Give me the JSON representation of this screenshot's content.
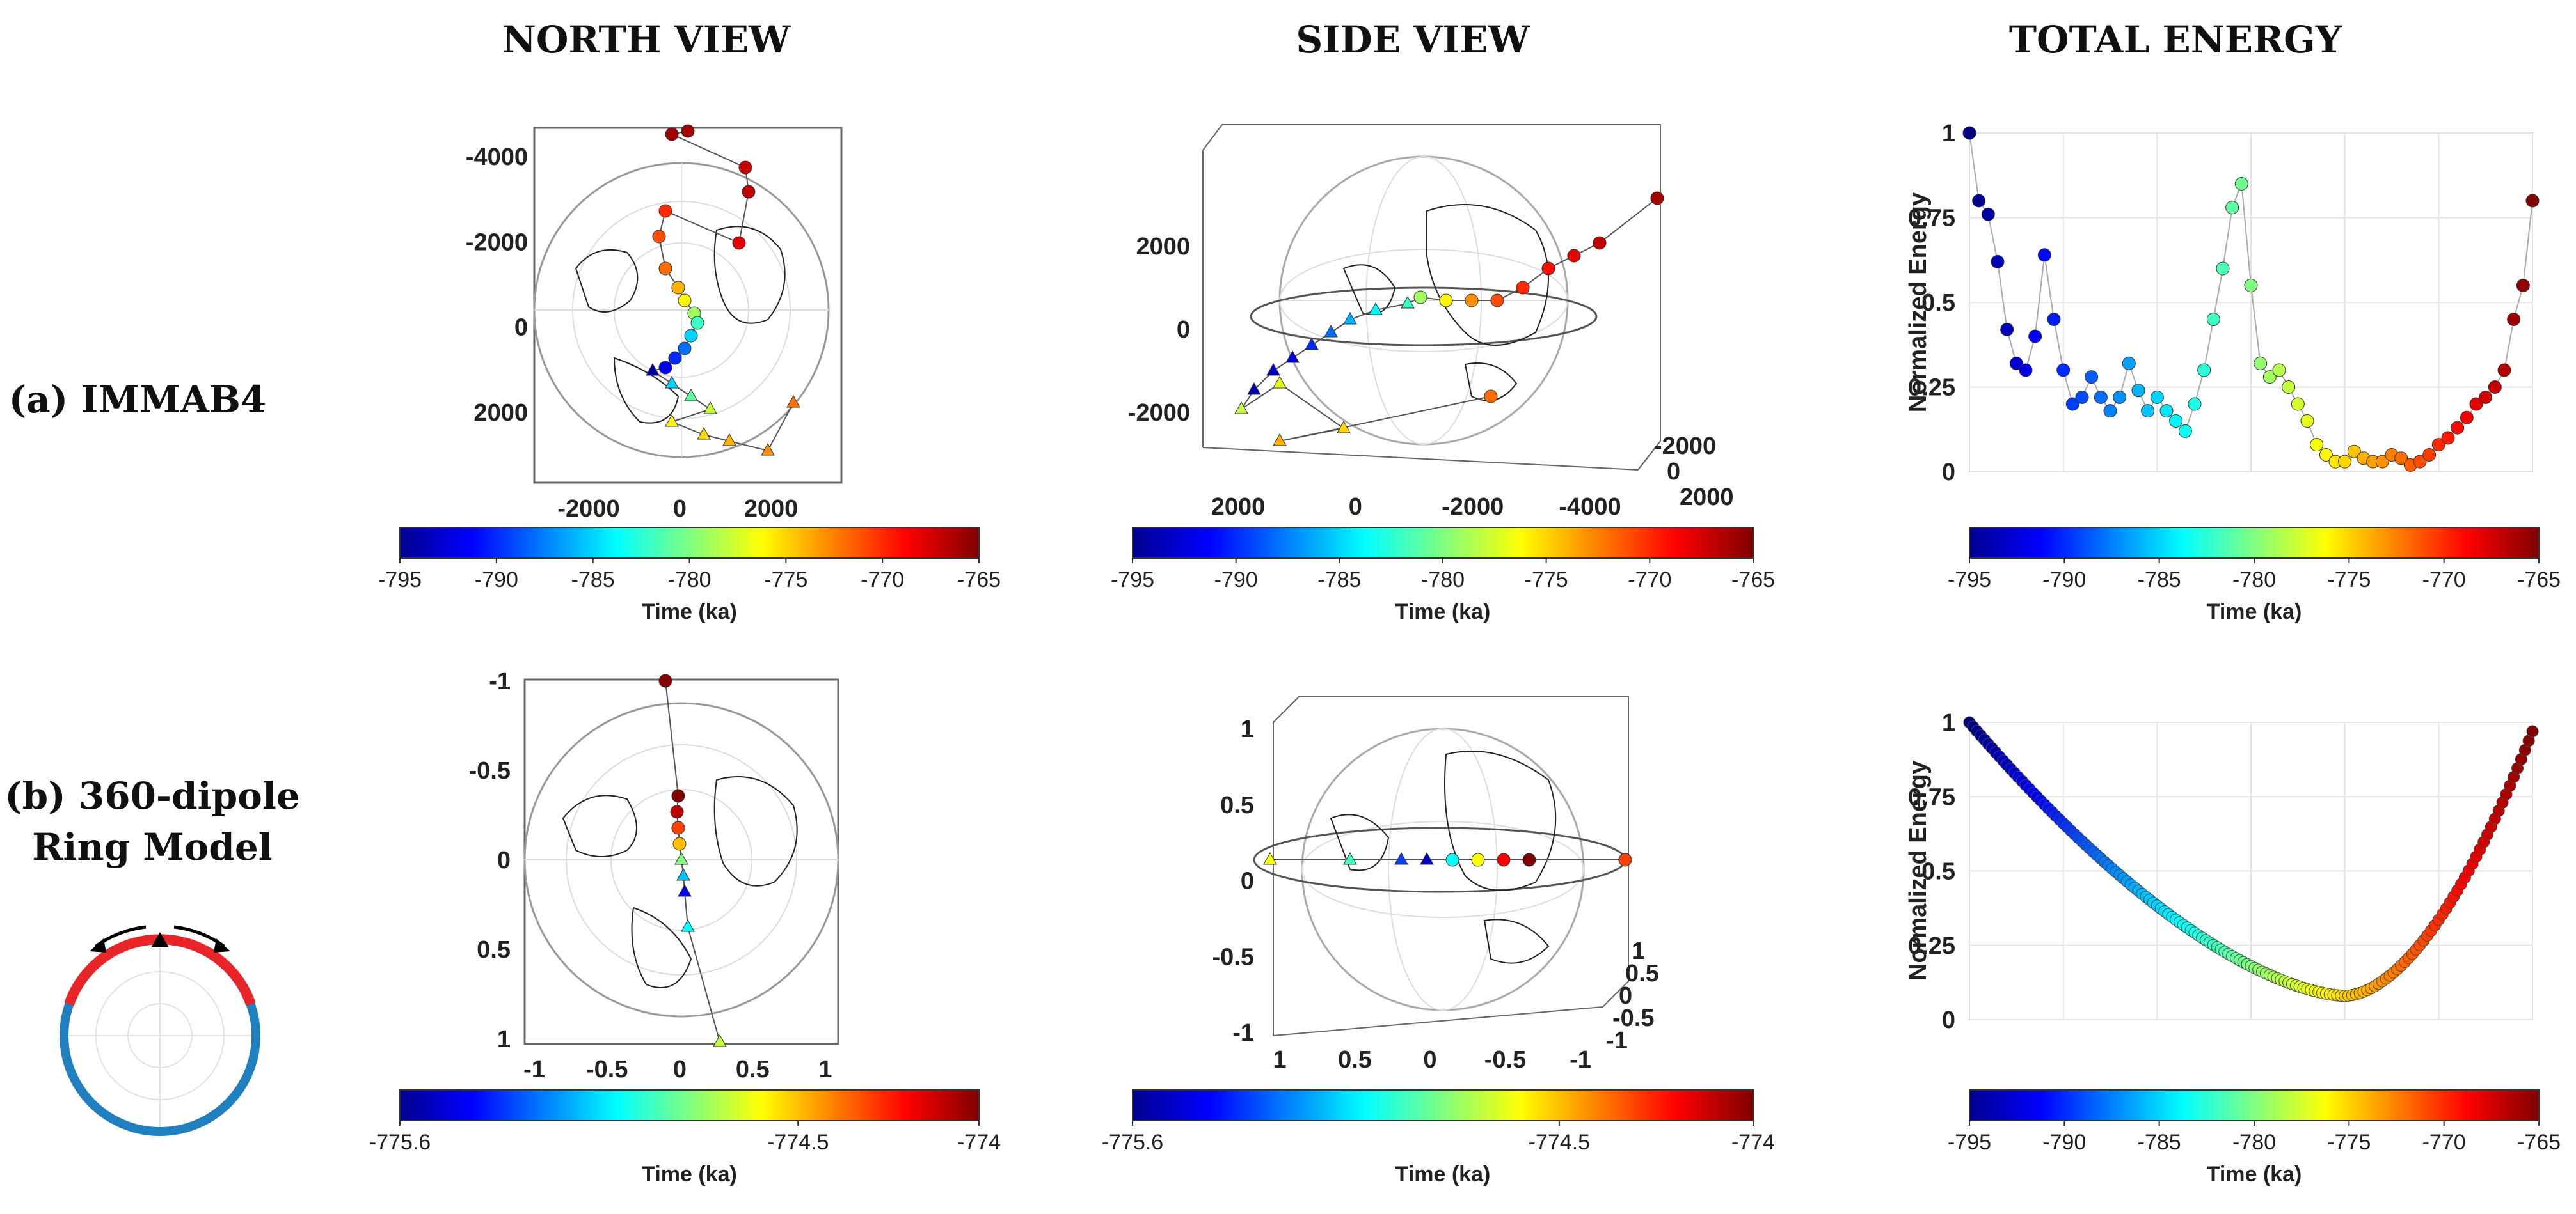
{
  "titles": {
    "north": "NORTH VIEW",
    "side": "SIDE VIEW",
    "energy": "TOTAL ENERGY"
  },
  "rows": {
    "a": {
      "label": "(a) IMMAB4"
    },
    "b": {
      "label_line1": "(b) 360-dipole",
      "label_line2": "Ring Model"
    }
  },
  "colorbar_label": "Time (ka)",
  "colors": {
    "axis": "#222222",
    "grid": "#cfcfcf",
    "ring_red": "#e8262a",
    "ring_blue": "#1f7fbf",
    "frame": "#666666"
  },
  "chart_data": [
    {
      "id": "a-north",
      "type": "scatter",
      "title": "NORTH VIEW",
      "xticks": [
        "-2000",
        "0",
        "2000"
      ],
      "yticks": [
        "-4000",
        "-2000",
        "0",
        "2000"
      ],
      "colorbar": {
        "ticks": [
          "-795",
          "-790",
          "-785",
          "-780",
          "-775",
          "-770",
          "-765"
        ],
        "range": [
          -795,
          -765
        ]
      }
    },
    {
      "id": "a-side",
      "type": "scatter",
      "title": "SIDE VIEW",
      "xticks": [
        "2000",
        "0",
        "-2000",
        "-4000"
      ],
      "yticks": [
        "2000",
        "0",
        "-2000"
      ],
      "depthticks": [
        "-2000",
        "0",
        "2000"
      ],
      "colorbar": {
        "ticks": [
          "-795",
          "-790",
          "-785",
          "-780",
          "-775",
          "-770",
          "-765"
        ],
        "range": [
          -795,
          -765
        ]
      }
    },
    {
      "id": "a-energy",
      "type": "scatter",
      "title": "TOTAL ENERGY",
      "ylabel": "Normalized Energy",
      "xlim": [
        -795,
        -765
      ],
      "ylim": [
        0,
        1
      ],
      "yticks": [
        "0",
        "0.25",
        "0.5",
        "0.75",
        "1"
      ],
      "x": [
        -795,
        -794.5,
        -794,
        -793.5,
        -793,
        -792.5,
        -792,
        -791.5,
        -791,
        -790.5,
        -790,
        -789.5,
        -789,
        -788.5,
        -788,
        -787.5,
        -787,
        -786.5,
        -786,
        -785.5,
        -785,
        -784.5,
        -784,
        -783.5,
        -783,
        -782.5,
        -782,
        -781.5,
        -781,
        -780.5,
        -780,
        -779.5,
        -779,
        -778.5,
        -778,
        -777.5,
        -777,
        -776.5,
        -776,
        -775.5,
        -775,
        -774.5,
        -774,
        -773.5,
        -773,
        -772.5,
        -772,
        -771.5,
        -771,
        -770.5,
        -770,
        -769.5,
        -769,
        -768.5,
        -768,
        -767.5,
        -767,
        -766.5,
        -766,
        -765.5,
        -765
      ],
      "y": [
        1.0,
        0.8,
        0.76,
        0.62,
        0.42,
        0.32,
        0.3,
        0.4,
        0.64,
        0.45,
        0.3,
        0.2,
        0.22,
        0.28,
        0.22,
        0.18,
        0.22,
        0.32,
        0.24,
        0.18,
        0.22,
        0.18,
        0.15,
        0.12,
        0.2,
        0.3,
        0.45,
        0.6,
        0.78,
        0.85,
        0.55,
        0.32,
        0.28,
        0.3,
        0.25,
        0.2,
        0.15,
        0.08,
        0.05,
        0.03,
        0.03,
        0.06,
        0.04,
        0.03,
        0.03,
        0.05,
        0.04,
        0.02,
        0.03,
        0.05,
        0.08,
        0.1,
        0.13,
        0.16,
        0.2,
        0.22,
        0.25,
        0.3,
        0.45,
        0.55,
        0.8
      ],
      "colorbar": {
        "ticks": [
          "-795",
          "-790",
          "-785",
          "-780",
          "-775",
          "-770",
          "-765"
        ],
        "range": [
          -795,
          -765
        ]
      }
    },
    {
      "id": "b-north",
      "type": "scatter",
      "title": "NORTH VIEW",
      "xticks": [
        "-1",
        "-0.5",
        "0",
        "0.5",
        "1"
      ],
      "yticks": [
        "-1",
        "-0.5",
        "0",
        "0.5",
        "1"
      ],
      "colorbar": {
        "ticks": [
          "-775.6",
          "-774.5",
          "-774"
        ],
        "range": [
          -775.6,
          -774
        ]
      }
    },
    {
      "id": "b-side",
      "type": "scatter",
      "title": "SIDE VIEW",
      "xticks": [
        "1",
        "0.5",
        "0",
        "-0.5",
        "-1"
      ],
      "yticks": [
        "1",
        "0.5",
        "0",
        "-0.5",
        "-1"
      ],
      "depthticks": [
        "-1",
        "-0.5",
        "0",
        "0.5",
        "1"
      ],
      "colorbar": {
        "ticks": [
          "-775.6",
          "-774.5",
          "-774"
        ],
        "range": [
          -775.6,
          -774
        ]
      }
    },
    {
      "id": "b-energy",
      "type": "scatter",
      "title": "TOTAL ENERGY",
      "ylabel": "Normalized Energy",
      "xlim": [
        -795,
        -765
      ],
      "ylim": [
        0,
        1
      ],
      "yticks": [
        "0",
        "0.25",
        "0.5",
        "0.75",
        "1"
      ],
      "curve": {
        "x_min_energy": -775,
        "y_min": 0.08,
        "y_left": 1.0,
        "y_right": 0.97
      },
      "colorbar": {
        "ticks": [
          "-795",
          "-790",
          "-785",
          "-780",
          "-775",
          "-770",
          "-765"
        ],
        "range": [
          -795,
          -765
        ]
      }
    }
  ]
}
